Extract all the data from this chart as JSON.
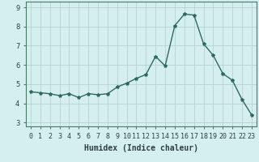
{
  "title": "",
  "xlabel": "Humidex (Indice chaleur)",
  "x_values": [
    0,
    1,
    2,
    3,
    4,
    5,
    6,
    7,
    8,
    9,
    10,
    11,
    12,
    13,
    14,
    15,
    16,
    17,
    18,
    19,
    20,
    21,
    22,
    23
  ],
  "y_values": [
    4.6,
    4.55,
    4.5,
    4.4,
    4.5,
    4.3,
    4.5,
    4.45,
    4.5,
    4.85,
    5.05,
    5.3,
    5.5,
    6.45,
    5.95,
    8.05,
    8.65,
    8.6,
    7.1,
    6.5,
    5.55,
    5.2,
    4.2,
    3.4
  ],
  "ylim": [
    2.8,
    9.3
  ],
  "xlim": [
    -0.5,
    23.5
  ],
  "line_color": "#2d6b5e",
  "marker": "*",
  "marker_size": 3,
  "bg_color": "#d5eeee",
  "grid_color": "#aecece",
  "tick_label_fontsize": 6,
  "axis_label_fontsize": 7,
  "yticks": [
    3,
    4,
    5,
    6,
    7,
    8,
    9
  ],
  "xtick_labels": [
    "0",
    "1",
    "2",
    "3",
    "4",
    "5",
    "6",
    "7",
    "8",
    "9",
    "10",
    "11",
    "12",
    "13",
    "14",
    "15",
    "16",
    "17",
    "18",
    "19",
    "20",
    "21",
    "22",
    "23"
  ]
}
